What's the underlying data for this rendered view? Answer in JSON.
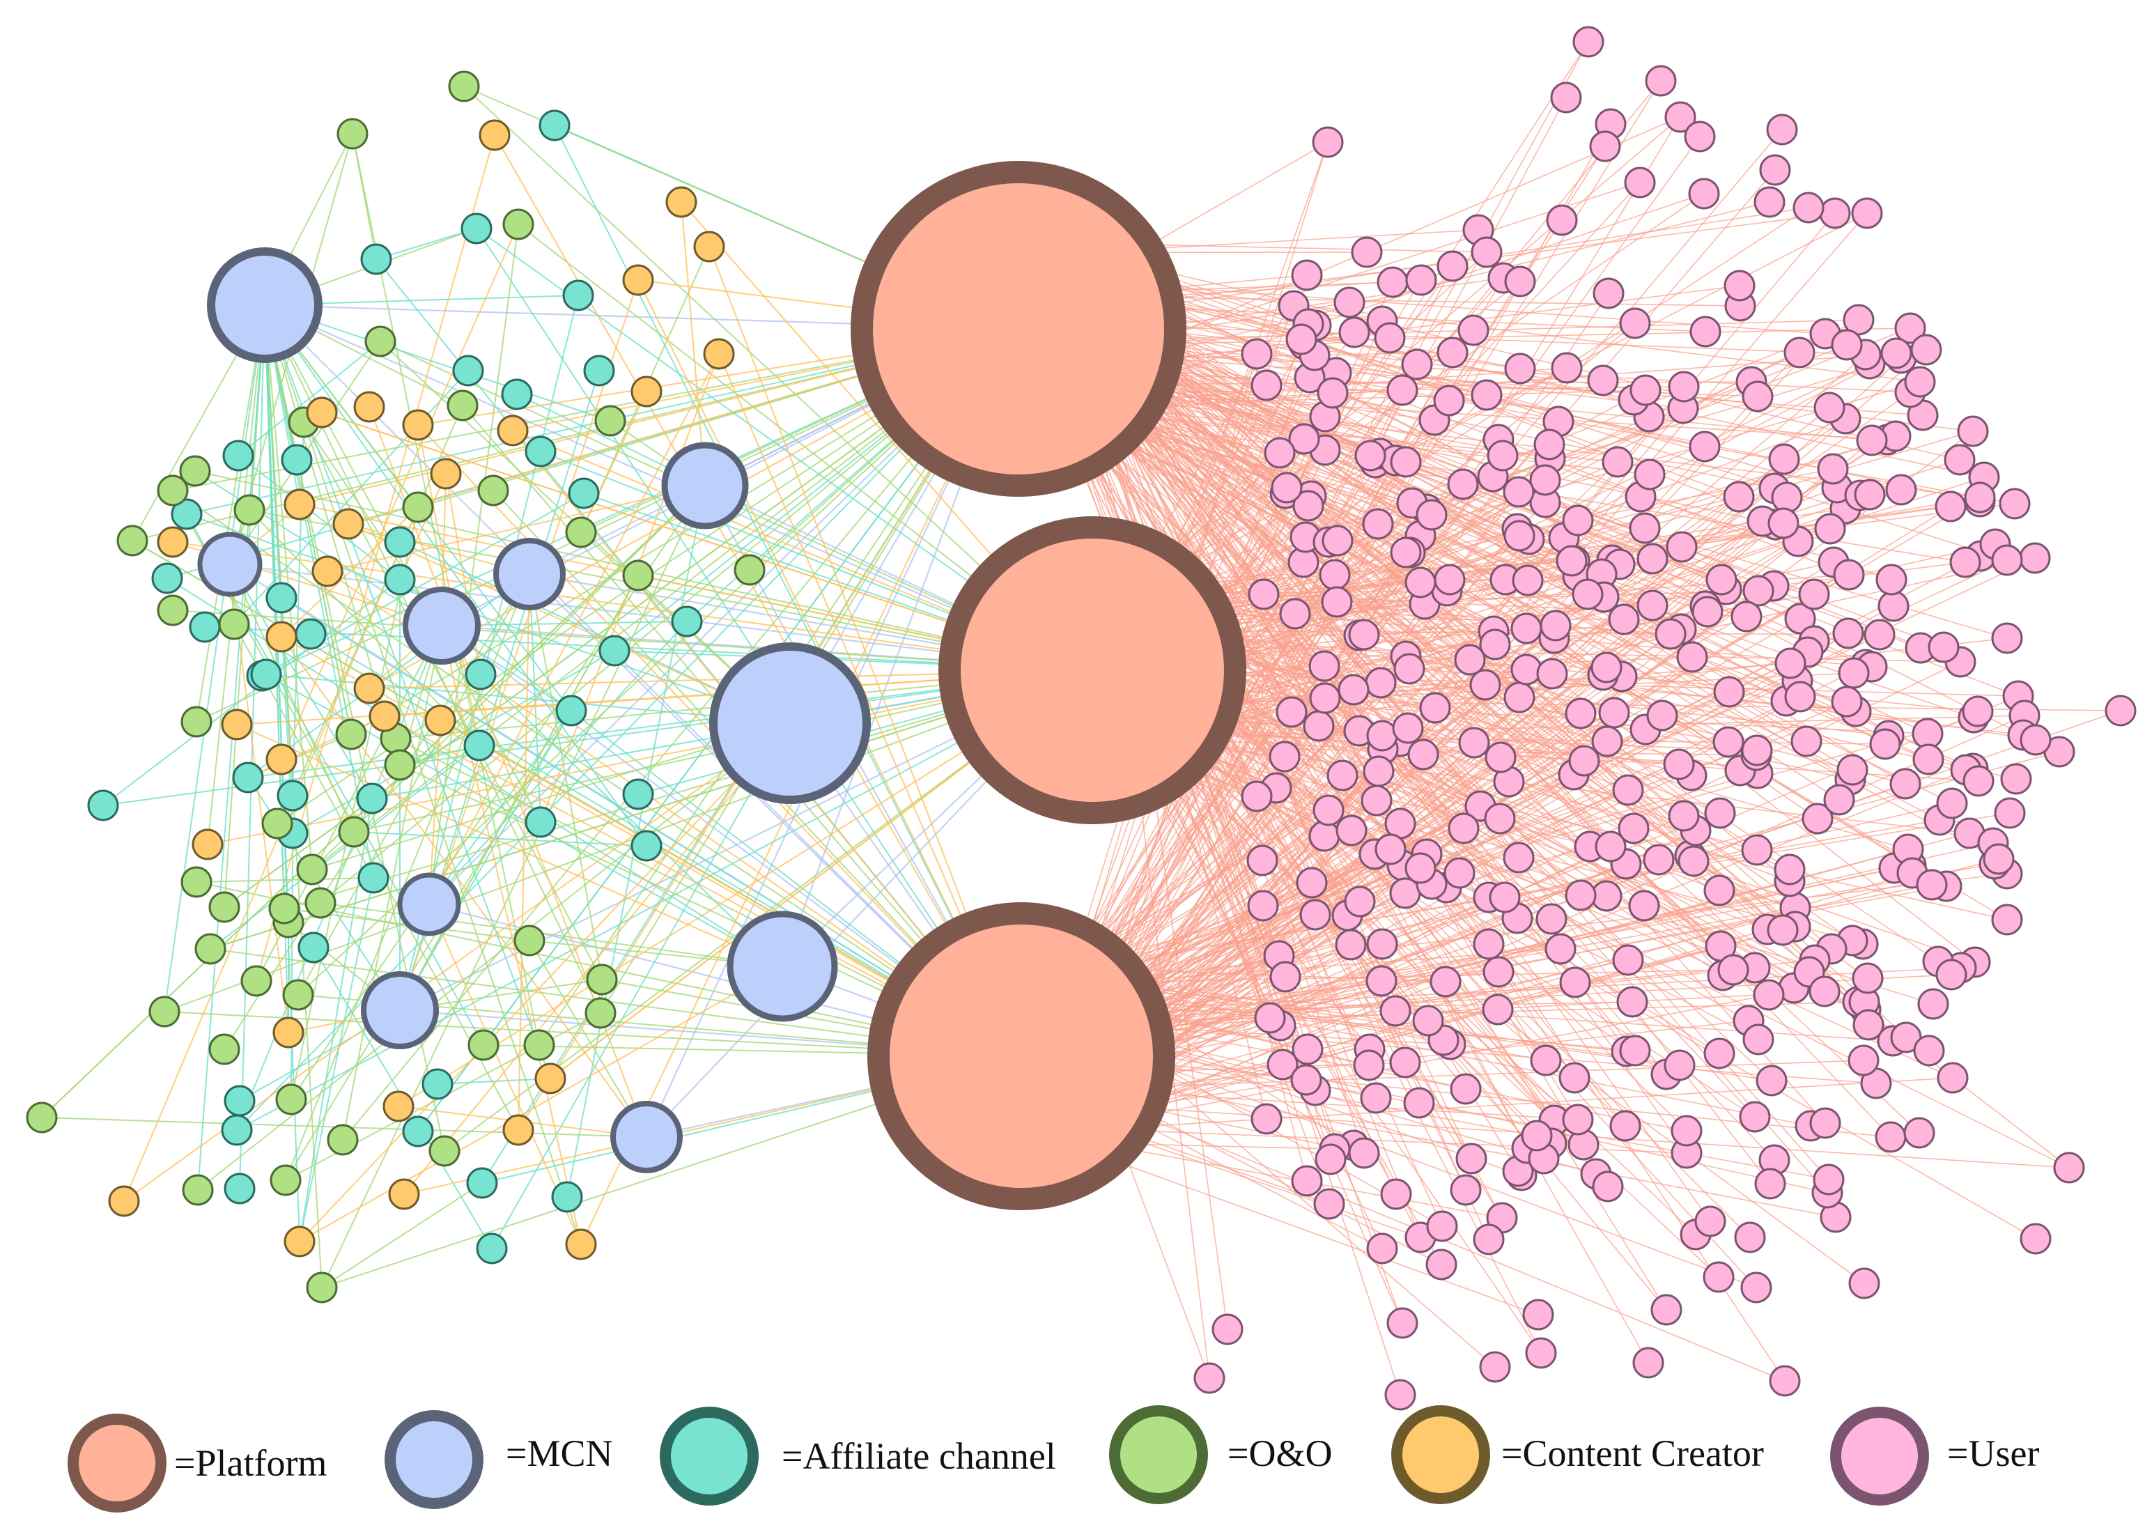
{
  "node_types": [
    {
      "key": "platform",
      "label": "=Platform",
      "fill": "#ffb19a",
      "stroke": "#7e584c",
      "edge": "#ffb19a"
    },
    {
      "key": "mcn",
      "label": "=MCN",
      "fill": "#bcd0fb",
      "stroke": "#5a6378",
      "edge": "#a9c0f0"
    },
    {
      "key": "affiliate",
      "label": "=Affiliate channel",
      "fill": "#78e3d0",
      "stroke": "#2c6a60",
      "edge": "#6ee0cc"
    },
    {
      "key": "oo",
      "label": "=O&O",
      "fill": "#afe084",
      "stroke": "#4d6b34",
      "edge": "#a5d97a"
    },
    {
      "key": "creator",
      "label": "=Content Creator",
      "fill": "#ffc96e",
      "stroke": "#6e5b2c",
      "edge": "#ffc25e"
    },
    {
      "key": "user",
      "label": "=User",
      "fill": "#ffb5dc",
      "stroke": "#7b5570",
      "edge": "#f9a28e"
    }
  ]
}
